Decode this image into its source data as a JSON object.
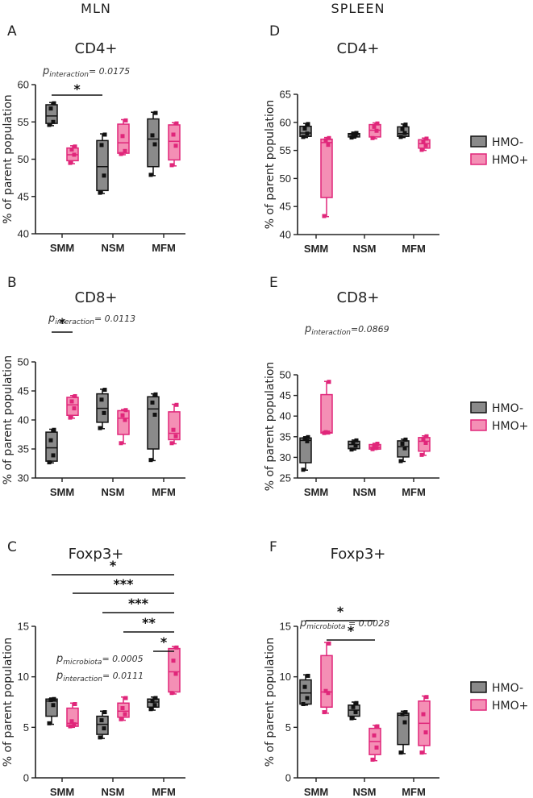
{
  "column_titles": {
    "left": "MLN",
    "right": "SPLEEN"
  },
  "colors": {
    "hmo_minus": "#8a8a8a",
    "hmo_plus": "#f48fb5",
    "hmo_plus_line": "#e0267a",
    "axis": "#222222"
  },
  "legend": {
    "entries": [
      "HMO-",
      "HMO+"
    ]
  },
  "chart_data": [
    {
      "panel": "A",
      "type": "box",
      "title": "CD4+",
      "ylabel": "% of parent population",
      "categories": [
        "SMM",
        "NSM",
        "MFM"
      ],
      "ylim": [
        40,
        60
      ],
      "yticks": [
        40,
        45,
        50,
        55,
        60
      ],
      "annotations": [
        {
          "text": "p",
          "sub": "interaction",
          "rest": "= 0.0175"
        }
      ],
      "significance": [
        {
          "label": "*",
          "from": [
            0,
            0
          ],
          "to": [
            1,
            0
          ]
        }
      ],
      "series": [
        {
          "name": "HMO-",
          "boxes": [
            {
              "min": 54.5,
              "q1": 54.8,
              "median": 55.8,
              "q3": 57.3,
              "max": 57.6,
              "points": [
                54.6,
                55.0,
                56.8,
                57.5
              ]
            },
            {
              "min": 45.4,
              "q1": 45.8,
              "median": 49.0,
              "q3": 52.5,
              "max": 53.4,
              "points": [
                45.5,
                47.8,
                51.9,
                53.3
              ]
            },
            {
              "min": 47.8,
              "q1": 49.0,
              "median": 52.7,
              "q3": 55.4,
              "max": 56.3,
              "points": [
                47.9,
                52.0,
                53.2,
                56.2
              ]
            }
          ]
        },
        {
          "name": "HMO+",
          "boxes": [
            {
              "min": 49.4,
              "q1": 49.8,
              "median": 50.6,
              "q3": 51.5,
              "max": 51.8,
              "points": [
                49.5,
                50.6,
                51.3,
                51.7
              ]
            },
            {
              "min": 50.6,
              "q1": 50.8,
              "median": 52.2,
              "q3": 54.7,
              "max": 55.3,
              "points": [
                50.7,
                51.1,
                53.1,
                55.2
              ]
            },
            {
              "min": 49.1,
              "q1": 49.9,
              "median": 52.4,
              "q3": 54.6,
              "max": 54.9,
              "points": [
                49.2,
                51.8,
                53.3,
                54.8
              ]
            }
          ]
        }
      ]
    },
    {
      "panel": "D",
      "type": "box",
      "title": "CD4+",
      "ylabel": "% of parent population",
      "categories": [
        "SMM",
        "NSM",
        "MFM"
      ],
      "ylim": [
        40,
        65
      ],
      "yticks": [
        40,
        45,
        50,
        55,
        60,
        65
      ],
      "annotations": [],
      "significance": [],
      "series": [
        {
          "name": "HMO-",
          "boxes": [
            {
              "min": 57.3,
              "q1": 57.5,
              "median": 58.1,
              "q3": 59.3,
              "max": 59.8,
              "points": [
                57.4,
                58.0,
                58.9,
                59.7
              ]
            },
            {
              "min": 57.2,
              "q1": 57.4,
              "median": 57.9,
              "q3": 58.0,
              "max": 58.2,
              "points": [
                57.3,
                57.8,
                58.0,
                58.1
              ]
            },
            {
              "min": 57.3,
              "q1": 57.5,
              "median": 58.0,
              "q3": 59.2,
              "max": 59.7,
              "points": [
                57.4,
                58.1,
                58.8,
                59.6
              ]
            }
          ]
        },
        {
          "name": "HMO+",
          "boxes": [
            {
              "min": 43.2,
              "q1": 46.6,
              "median": 56.4,
              "q3": 57.0,
              "max": 57.3,
              "points": [
                43.3,
                56.0,
                56.8,
                57.2
              ]
            },
            {
              "min": 57.1,
              "q1": 57.4,
              "median": 58.6,
              "q3": 59.6,
              "max": 59.9,
              "points": [
                57.2,
                58.5,
                59.2,
                59.8
              ]
            },
            {
              "min": 55.0,
              "q1": 55.4,
              "median": 56.2,
              "q3": 56.9,
              "max": 57.2,
              "points": [
                55.1,
                55.9,
                56.5,
                57.1
              ]
            }
          ]
        }
      ]
    },
    {
      "panel": "B",
      "type": "box",
      "title": "CD8+",
      "ylabel": "% of parent population",
      "categories": [
        "SMM",
        "NSM",
        "MFM"
      ],
      "ylim": [
        30,
        50
      ],
      "yticks": [
        30,
        35,
        40,
        45,
        50
      ],
      "annotations": [
        {
          "text": "p",
          "sub": "interaction",
          "rest": "= 0.0113"
        }
      ],
      "significance": [
        {
          "label": "*",
          "from": [
            0,
            0
          ],
          "to": [
            0,
            1
          ]
        }
      ],
      "series": [
        {
          "name": "HMO-",
          "boxes": [
            {
              "min": 32.6,
              "q1": 32.9,
              "median": 35.2,
              "q3": 37.9,
              "max": 38.4,
              "points": [
                32.7,
                33.9,
                36.5,
                38.3
              ]
            },
            {
              "min": 38.5,
              "q1": 39.6,
              "median": 42.0,
              "q3": 44.5,
              "max": 45.3,
              "points": [
                38.6,
                41.2,
                43.5,
                45.2
              ]
            },
            {
              "min": 33.0,
              "q1": 35.0,
              "median": 41.9,
              "q3": 44.0,
              "max": 44.5,
              "points": [
                33.1,
                40.9,
                43.0,
                44.4
              ]
            }
          ]
        },
        {
          "name": "HMO+",
          "boxes": [
            {
              "min": 40.3,
              "q1": 40.8,
              "median": 42.6,
              "q3": 43.9,
              "max": 44.2,
              "points": [
                40.4,
                42.0,
                43.2,
                44.1
              ]
            },
            {
              "min": 35.9,
              "q1": 37.5,
              "median": 40.3,
              "q3": 41.6,
              "max": 41.8,
              "points": [
                36.0,
                40.0,
                40.8,
                41.7
              ]
            },
            {
              "min": 35.9,
              "q1": 36.6,
              "median": 37.7,
              "q3": 41.4,
              "max": 42.7,
              "points": [
                36.0,
                37.2,
                38.3,
                42.6
              ]
            }
          ]
        }
      ]
    },
    {
      "panel": "E",
      "type": "box",
      "title": "CD8+",
      "ylabel": "% of parent population",
      "categories": [
        "SMM",
        "NSM",
        "MFM"
      ],
      "ylim": [
        25,
        50
      ],
      "yticks": [
        25,
        30,
        35,
        40,
        45,
        50
      ],
      "annotations": [
        {
          "text": "p",
          "sub": "interaction",
          "rest": "=0.0869"
        }
      ],
      "significance": [],
      "series": [
        {
          "name": "HMO-",
          "boxes": [
            {
              "min": 26.9,
              "q1": 28.7,
              "median": 34.1,
              "q3": 34.7,
              "max": 35.0,
              "points": [
                27.0,
                33.9,
                34.5,
                34.9
              ]
            },
            {
              "min": 31.8,
              "q1": 32.1,
              "median": 33.1,
              "q3": 33.9,
              "max": 34.2,
              "points": [
                31.9,
                32.8,
                33.5,
                34.1
              ]
            },
            {
              "min": 29.0,
              "q1": 30.1,
              "median": 32.6,
              "q3": 34.0,
              "max": 34.4,
              "points": [
                29.1,
                32.2,
                33.3,
                34.3
              ]
            }
          ]
        },
        {
          "name": "HMO+",
          "boxes": [
            {
              "min": 35.8,
              "q1": 35.9,
              "median": 36.0,
              "q3": 45.2,
              "max": 48.4,
              "points": [
                35.9,
                36.0,
                36.1,
                48.3
              ]
            },
            {
              "min": 31.9,
              "q1": 32.0,
              "median": 32.4,
              "q3": 33.1,
              "max": 33.4,
              "points": [
                32.0,
                32.3,
                32.8,
                33.3
              ]
            },
            {
              "min": 30.5,
              "q1": 31.5,
              "median": 33.9,
              "q3": 34.8,
              "max": 35.2,
              "points": [
                30.6,
                33.5,
                34.3,
                35.1
              ]
            }
          ]
        }
      ]
    },
    {
      "panel": "C",
      "type": "box",
      "title": "Foxp3+",
      "ylabel": "% of parent population",
      "categories": [
        "SMM",
        "NSM",
        "MFM"
      ],
      "ylim": [
        0,
        15
      ],
      "yticks": [
        0,
        5,
        10,
        15
      ],
      "annotations": [
        {
          "text": "p",
          "sub": "microbiota",
          "rest": "= 0.0005"
        },
        {
          "text": "p",
          "sub": "interaction",
          "rest": "= 0.0111"
        }
      ],
      "significance": [
        {
          "label": "*",
          "from": [
            0,
            0
          ],
          "to": [
            2,
            1
          ]
        },
        {
          "label": "***",
          "from": [
            0,
            1
          ],
          "to": [
            2,
            1
          ]
        },
        {
          "label": "***",
          "from": [
            1,
            0
          ],
          "to": [
            2,
            1
          ]
        },
        {
          "label": "**",
          "from": [
            1,
            1
          ],
          "to": [
            2,
            1
          ]
        },
        {
          "label": "*",
          "from": [
            2,
            0
          ],
          "to": [
            2,
            1
          ]
        }
      ],
      "series": [
        {
          "name": "HMO-",
          "boxes": [
            {
              "min": 5.3,
              "q1": 6.1,
              "median": 7.6,
              "q3": 7.8,
              "max": 7.9,
              "points": [
                5.4,
                7.2,
                7.7,
                7.8
              ]
            },
            {
              "min": 3.9,
              "q1": 4.3,
              "median": 5.3,
              "q3": 6.1,
              "max": 6.6,
              "points": [
                4.0,
                4.9,
                5.7,
                6.5
              ]
            },
            {
              "min": 6.7,
              "q1": 7.0,
              "median": 7.5,
              "q3": 7.8,
              "max": 8.0,
              "points": [
                6.8,
                7.2,
                7.6,
                7.9
              ]
            }
          ]
        },
        {
          "name": "HMO+",
          "boxes": [
            {
              "min": 5.0,
              "q1": 5.1,
              "median": 5.4,
              "q3": 6.9,
              "max": 7.4,
              "points": [
                5.1,
                5.3,
                5.6,
                7.3
              ]
            },
            {
              "min": 5.7,
              "q1": 6.0,
              "median": 6.6,
              "q3": 7.4,
              "max": 8.0,
              "points": [
                5.8,
                6.3,
                6.9,
                7.9
              ]
            },
            {
              "min": 8.3,
              "q1": 8.5,
              "median": 10.5,
              "q3": 12.8,
              "max": 13.0,
              "points": [
                8.4,
                10.3,
                11.6,
                12.9
              ]
            }
          ]
        }
      ]
    },
    {
      "panel": "F",
      "type": "box",
      "title": "Foxp3+",
      "ylabel": "% of parent population",
      "categories": [
        "SMM",
        "NSM",
        "MFM"
      ],
      "ylim": [
        0,
        15
      ],
      "yticks": [
        0,
        5,
        10,
        15
      ],
      "annotations": [
        {
          "text": "p",
          "sub": "microbiota",
          "rest": " = 0.0028"
        }
      ],
      "significance": [
        {
          "label": "*",
          "from": [
            0,
            0
          ],
          "to": [
            1,
            1
          ]
        },
        {
          "label": "*",
          "from": [
            0,
            1
          ],
          "to": [
            1,
            1
          ]
        }
      ],
      "series": [
        {
          "name": "HMO-",
          "boxes": [
            {
              "min": 7.2,
              "q1": 7.3,
              "median": 8.4,
              "q3": 9.7,
              "max": 10.2,
              "points": [
                7.3,
                7.9,
                9.0,
                10.1
              ]
            },
            {
              "min": 5.8,
              "q1": 6.1,
              "median": 6.7,
              "q3": 7.2,
              "max": 7.5,
              "points": [
                5.9,
                6.5,
                7.0,
                7.4
              ]
            },
            {
              "min": 2.4,
              "q1": 3.3,
              "median": 6.2,
              "q3": 6.4,
              "max": 6.6,
              "points": [
                2.5,
                5.5,
                6.3,
                6.5
              ]
            }
          ]
        },
        {
          "name": "HMO+",
          "boxes": [
            {
              "min": 6.4,
              "q1": 7.0,
              "median": 8.5,
              "q3": 12.1,
              "max": 13.4,
              "points": [
                6.5,
                8.4,
                8.6,
                13.3
              ]
            },
            {
              "min": 1.7,
              "q1": 2.3,
              "median": 3.6,
              "q3": 4.9,
              "max": 5.2,
              "points": [
                1.8,
                3.0,
                4.2,
                5.1
              ]
            },
            {
              "min": 2.4,
              "q1": 3.2,
              "median": 5.4,
              "q3": 7.6,
              "max": 8.1,
              "points": [
                2.5,
                4.5,
                6.3,
                8.0
              ]
            }
          ]
        }
      ]
    }
  ]
}
